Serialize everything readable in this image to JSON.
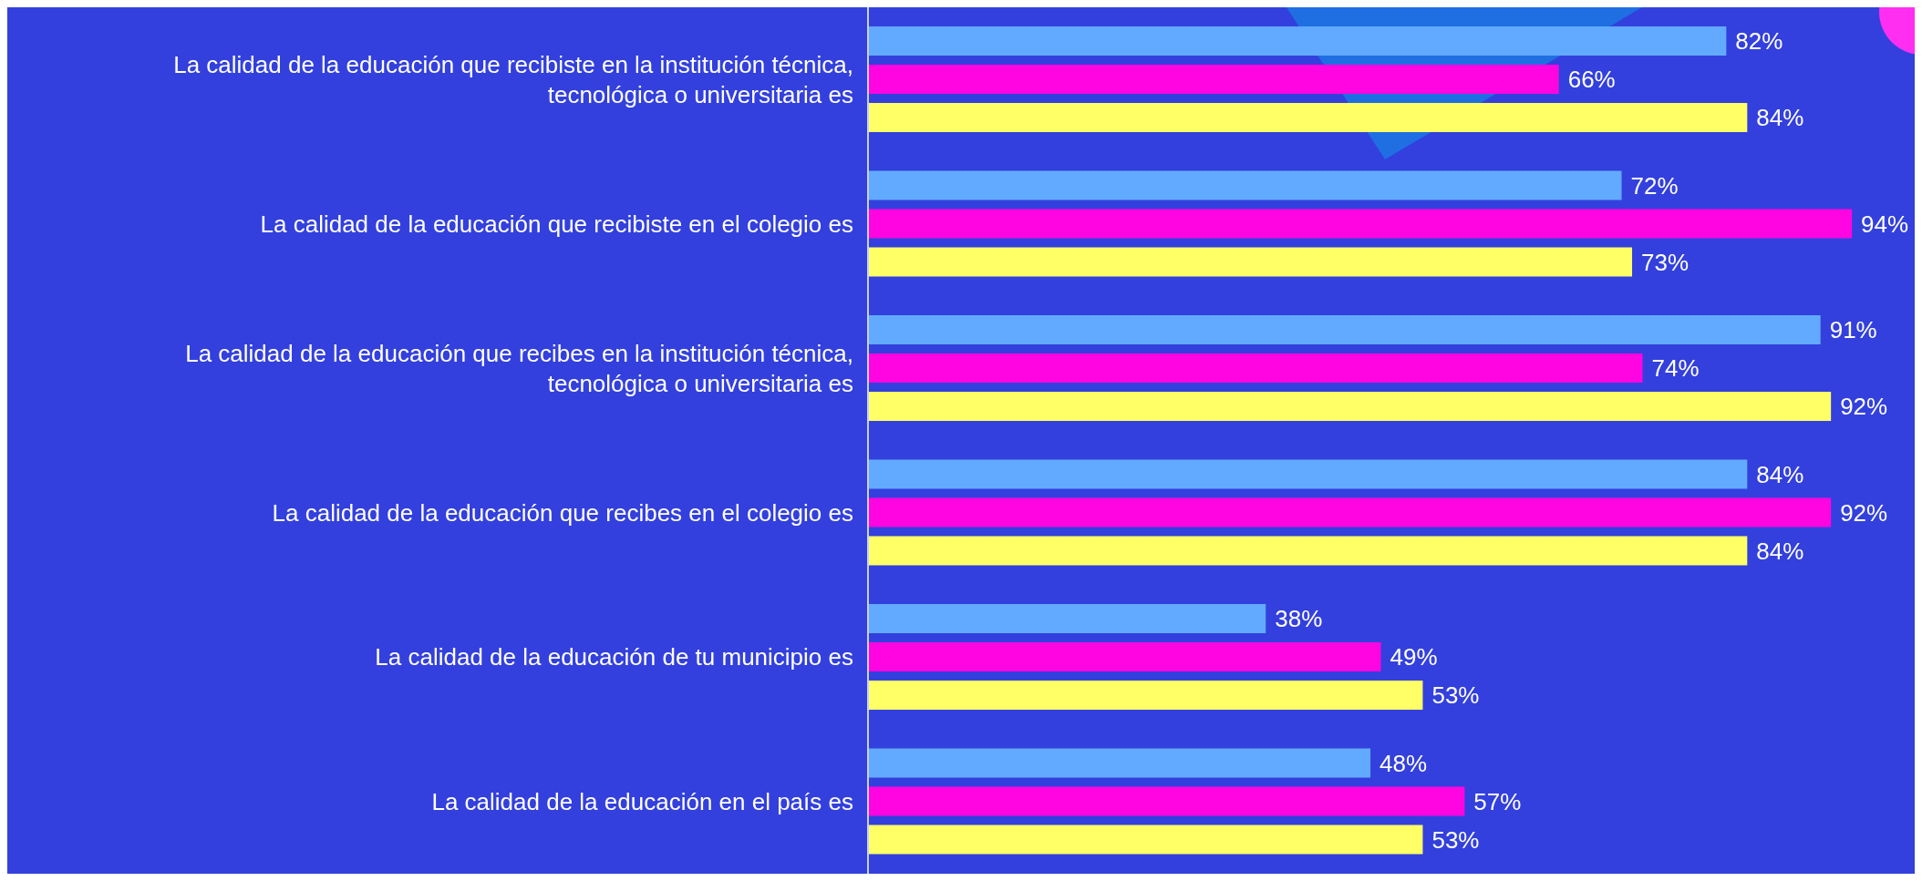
{
  "chart_data": {
    "type": "bar",
    "orientation": "horizontal",
    "categories": [
      "La calidad de la educación que recibiste en la institución técnica, tecnológica o universitaria es",
      "La calidad de la educación que recibiste en el colegio es",
      "La calidad de la educación que recibes en la institución técnica, tecnológica o universitaria es",
      "La calidad de la educación que recibes en el colegio es",
      "La calidad de la educación de tu municipio es",
      "La calidad de la educación en el país es"
    ],
    "series": [
      {
        "color": "#62aaff",
        "values": [
          82,
          72,
          91,
          84,
          38,
          48
        ],
        "value_labels": [
          "82%",
          "72%",
          "91%",
          "84%",
          "38%",
          "48%"
        ]
      },
      {
        "color": "#ff05e1",
        "values": [
          66,
          94,
          74,
          92,
          49,
          57
        ],
        "value_labels": [
          "66%",
          "94%",
          "74%",
          "92%",
          "49%",
          "57%"
        ]
      },
      {
        "color": "#ffff66",
        "values": [
          84,
          73,
          92,
          84,
          53,
          53
        ],
        "value_labels": [
          "84%",
          "73%",
          "92%",
          "84%",
          "53%",
          "53%"
        ]
      }
    ],
    "xlim": [
      0,
      100
    ],
    "tick_labels": "y"
  }
}
